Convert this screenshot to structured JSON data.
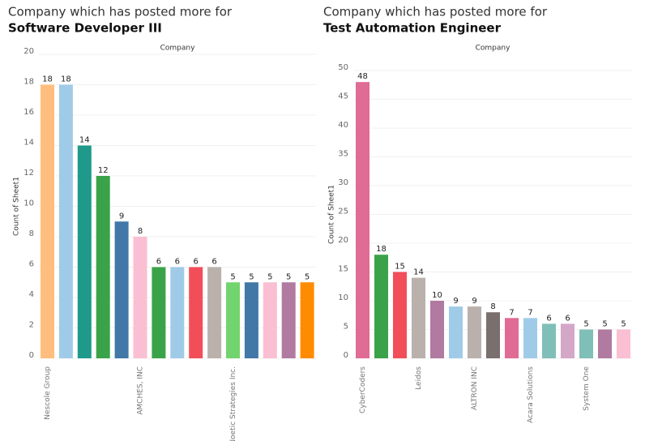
{
  "chart_data": [
    {
      "type": "bar",
      "title": "Company which has posted more for",
      "title_job": "Software Developer III",
      "header": "Company",
      "y_label": "Count of Sheet1",
      "categories": [
        "Nescole Group",
        null,
        null,
        null,
        null,
        "AMCHES, INC",
        null,
        null,
        null,
        null,
        "Noetic Strategies Inc.",
        null,
        null,
        null,
        null
      ],
      "values": [
        18,
        18,
        14,
        12,
        9,
        8,
        6,
        6,
        6,
        6,
        5,
        5,
        5,
        5,
        5
      ],
      "colors": [
        "#ffbe7d",
        "#a0cbe8",
        "#1f9a8a",
        "#3aa349",
        "#4178a8",
        "#fabfd2",
        "#3aa349",
        "#a0cbe8",
        "#f24e5a",
        "#bab0ac",
        "#72d46e",
        "#4178a8",
        "#fabfd2",
        "#b07aa1",
        "#ff8c00"
      ],
      "ylim": [
        0,
        20
      ],
      "yticks": [
        0,
        2,
        4,
        6,
        8,
        10,
        12,
        14,
        16,
        18,
        20
      ],
      "grid": true
    },
    {
      "type": "bar",
      "title": "Company which has posted more for",
      "title_job": "Test Automation Engineer",
      "header": "Company",
      "y_label": "Count of Sheet1",
      "categories": [
        "CyberCoders",
        null,
        null,
        "Leidos",
        null,
        null,
        "ALTRON INC",
        null,
        null,
        "Acara Solutions",
        null,
        null,
        "System One",
        null,
        null
      ],
      "values": [
        48,
        18,
        15,
        14,
        10,
        9,
        9,
        8,
        7,
        7,
        6,
        6,
        5,
        5,
        5
      ],
      "colors": [
        "#e06b94",
        "#3aa349",
        "#f24e5a",
        "#bab0ac",
        "#b07aa1",
        "#a0cbe8",
        "#bab0ac",
        "#79706e",
        "#e06b94",
        "#a0cbe8",
        "#7fbfb8",
        "#d4a6c8",
        "#7fbfb8",
        "#b07aa1",
        "#fabfd2"
      ],
      "ylim": [
        0,
        50
      ],
      "yticks": [
        0,
        5,
        10,
        15,
        20,
        25,
        30,
        35,
        40,
        45,
        50
      ],
      "grid": true
    }
  ]
}
